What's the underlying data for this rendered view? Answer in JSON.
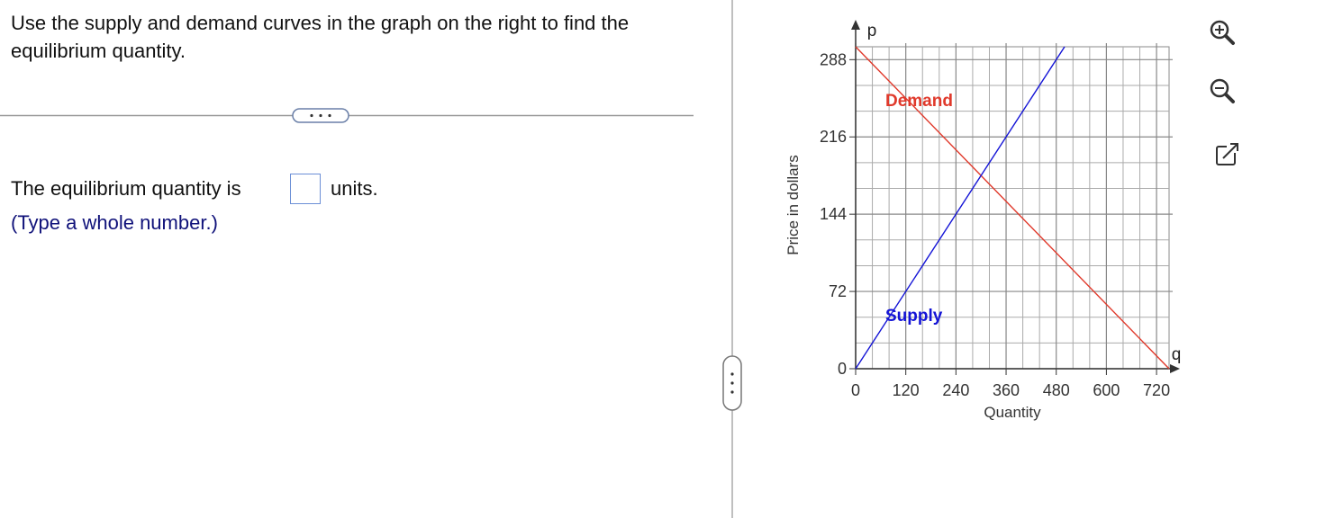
{
  "question": {
    "prompt": "Use the supply and demand curves in the graph on the right to find the equilibrium quantity.",
    "answer_prefix": "The equilibrium quantity is",
    "answer_suffix": "units.",
    "hint": "(Type a whole number.)"
  },
  "chart_data": {
    "type": "line",
    "xlabel": "Quantity",
    "ylabel": "Price in dollars",
    "x_symbol": "q",
    "y_symbol": "p",
    "xlim": [
      0,
      750
    ],
    "ylim": [
      0,
      300
    ],
    "xticks": [
      0,
      120,
      240,
      360,
      480,
      600,
      720
    ],
    "yticks": [
      0,
      72,
      144,
      216,
      288
    ],
    "minor_xticks": [
      40,
      80,
      160,
      200,
      280,
      320,
      400,
      440,
      520,
      560,
      640,
      680
    ],
    "minor_yticks": [
      24,
      48,
      96,
      120,
      168,
      192,
      240,
      264
    ],
    "grid": true,
    "series": [
      {
        "name": "Demand",
        "color": "#e0392b",
        "x": [
          0,
          750
        ],
        "values": [
          300,
          0
        ]
      },
      {
        "name": "Supply",
        "color": "#1414d6",
        "x": [
          0,
          500
        ],
        "values": [
          0,
          300
        ]
      }
    ]
  }
}
